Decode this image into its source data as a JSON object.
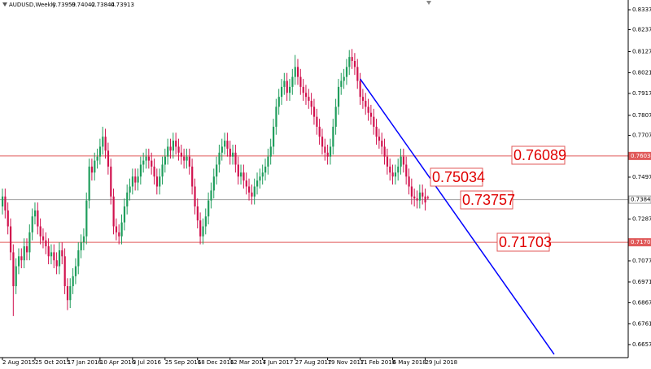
{
  "chart_data": {
    "type": "candlestick",
    "symbol": "AUDUSD,Weekly",
    "categories": [
      "2 Aug 2015",
      null,
      null,
      null,
      null,
      null,
      null,
      null,
      null,
      null,
      null,
      null,
      "25 Oct 2015",
      null,
      null,
      null,
      null,
      null,
      null,
      null,
      null,
      null,
      null,
      null,
      "17 Jan 2016",
      null,
      null,
      null,
      null,
      null,
      null,
      null,
      null,
      null,
      null,
      null,
      "10 Apr 2016",
      null,
      null,
      null,
      null,
      null,
      null,
      null,
      null,
      null,
      null,
      null,
      "3 Jul 2016",
      null,
      null,
      null,
      null,
      null,
      null,
      null,
      null,
      null,
      null,
      null,
      "25 Sep 2016",
      null,
      null,
      null,
      null,
      null,
      null,
      null,
      null,
      null,
      null,
      null,
      "18 Dec 2016",
      null,
      null,
      null,
      null,
      null,
      null,
      null,
      null,
      null,
      null,
      null,
      "12 Mar 2017",
      null,
      null,
      null,
      null,
      null,
      null,
      null,
      null,
      null,
      null,
      null,
      "4 Jun 2017",
      null,
      null,
      null,
      null,
      null,
      null,
      null,
      null,
      null,
      null,
      null,
      "27 Aug 2017",
      null,
      null,
      null,
      null,
      null,
      null,
      null,
      null,
      null,
      null,
      null,
      "19 Nov 2017",
      null,
      null,
      null,
      null,
      null,
      null,
      null,
      null,
      null,
      null,
      null,
      "11 Feb 2018",
      null,
      null,
      null,
      null,
      null,
      null,
      null,
      null,
      null,
      null,
      null,
      "6 May 2018",
      null,
      null,
      null,
      null,
      null,
      null,
      null,
      null,
      null,
      null,
      null,
      "29 Jul 2018",
      null
    ],
    "open": [
      0.735,
      0.74,
      0.733,
      0.725,
      0.712,
      0.695,
      0.705,
      0.71,
      0.708,
      0.715,
      0.712,
      0.722,
      0.73,
      0.733,
      0.725,
      0.72,
      0.718,
      0.715,
      0.71,
      0.712,
      0.708,
      0.705,
      0.713,
      0.71,
      0.695,
      0.688,
      0.695,
      0.7,
      0.705,
      0.713,
      0.717,
      0.72,
      0.738,
      0.755,
      0.752,
      0.758,
      0.76,
      0.765,
      0.77,
      0.763,
      0.755,
      0.74,
      0.725,
      0.722,
      0.72,
      0.727,
      0.735,
      0.742,
      0.745,
      0.75,
      0.747,
      0.75,
      0.756,
      0.758,
      0.76,
      0.758,
      0.755,
      0.75,
      0.745,
      0.75,
      0.756,
      0.76,
      0.765,
      0.763,
      0.768,
      0.765,
      0.762,
      0.76,
      0.758,
      0.76,
      0.755,
      0.745,
      0.735,
      0.728,
      0.72,
      0.725,
      0.73,
      0.738,
      0.743,
      0.75,
      0.756,
      0.762,
      0.765,
      0.768,
      0.764,
      0.76,
      0.762,
      0.756,
      0.75,
      0.752,
      0.748,
      0.745,
      0.742,
      0.74,
      0.745,
      0.748,
      0.75,
      0.752,
      0.755,
      0.76,
      0.765,
      0.775,
      0.785,
      0.79,
      0.795,
      0.798,
      0.792,
      0.795,
      0.8,
      0.805,
      0.8,
      0.795,
      0.792,
      0.79,
      0.788,
      0.785,
      0.78,
      0.775,
      0.77,
      0.765,
      0.762,
      0.76,
      0.765,
      0.775,
      0.785,
      0.795,
      0.798,
      0.8,
      0.805,
      0.81,
      0.808,
      0.805,
      0.798,
      0.79,
      0.788,
      0.785,
      0.782,
      0.78,
      0.775,
      0.77,
      0.768,
      0.765,
      0.76,
      0.755,
      0.752,
      0.75,
      0.752,
      0.755,
      0.76,
      0.756,
      0.75,
      0.745,
      0.74,
      0.739,
      0.738,
      0.742,
      0.74,
      0.73959
    ],
    "high": [
      0.744,
      0.744,
      0.737,
      0.729,
      0.716,
      0.709,
      0.714,
      0.714,
      0.719,
      0.719,
      0.726,
      0.734,
      0.737,
      0.737,
      0.729,
      0.724,
      0.722,
      0.719,
      0.716,
      0.716,
      0.712,
      0.717,
      0.717,
      0.714,
      0.699,
      0.699,
      0.704,
      0.709,
      0.717,
      0.721,
      0.724,
      0.742,
      0.759,
      0.759,
      0.762,
      0.764,
      0.769,
      0.775,
      0.774,
      0.767,
      0.759,
      0.744,
      0.729,
      0.726,
      0.731,
      0.739,
      0.746,
      0.749,
      0.754,
      0.754,
      0.754,
      0.76,
      0.762,
      0.764,
      0.764,
      0.762,
      0.759,
      0.754,
      0.754,
      0.76,
      0.764,
      0.769,
      0.769,
      0.772,
      0.772,
      0.769,
      0.766,
      0.764,
      0.764,
      0.764,
      0.759,
      0.749,
      0.739,
      0.732,
      0.729,
      0.734,
      0.742,
      0.747,
      0.754,
      0.76,
      0.766,
      0.769,
      0.772,
      0.772,
      0.768,
      0.766,
      0.766,
      0.76,
      0.756,
      0.756,
      0.752,
      0.749,
      0.746,
      0.749,
      0.752,
      0.754,
      0.756,
      0.759,
      0.764,
      0.769,
      0.779,
      0.789,
      0.794,
      0.799,
      0.802,
      0.802,
      0.799,
      0.804,
      0.811,
      0.809,
      0.804,
      0.799,
      0.796,
      0.794,
      0.792,
      0.789,
      0.784,
      0.779,
      0.774,
      0.769,
      0.766,
      0.769,
      0.779,
      0.789,
      0.799,
      0.802,
      0.804,
      0.809,
      0.8135,
      0.814,
      0.812,
      0.809,
      0.802,
      0.794,
      0.792,
      0.789,
      0.786,
      0.784,
      0.779,
      0.774,
      0.772,
      0.769,
      0.764,
      0.759,
      0.756,
      0.756,
      0.759,
      0.764,
      0.764,
      0.76,
      0.754,
      0.749,
      0.744,
      0.743,
      0.746,
      0.746,
      0.744,
      0.74042
    ],
    "low": [
      0.731,
      0.729,
      0.721,
      0.708,
      0.68,
      0.691,
      0.701,
      0.704,
      0.704,
      0.708,
      0.708,
      0.718,
      0.726,
      0.721,
      0.716,
      0.714,
      0.711,
      0.706,
      0.706,
      0.704,
      0.701,
      0.701,
      0.706,
      0.691,
      0.683,
      0.684,
      0.691,
      0.696,
      0.701,
      0.709,
      0.713,
      0.716,
      0.734,
      0.748,
      0.748,
      0.754,
      0.756,
      0.761,
      0.759,
      0.751,
      0.736,
      0.721,
      0.718,
      0.716,
      0.716,
      0.723,
      0.731,
      0.738,
      0.741,
      0.743,
      0.743,
      0.746,
      0.752,
      0.754,
      0.754,
      0.751,
      0.746,
      0.741,
      0.741,
      0.746,
      0.752,
      0.756,
      0.759,
      0.759,
      0.761,
      0.758,
      0.756,
      0.754,
      0.754,
      0.751,
      0.741,
      0.731,
      0.724,
      0.716,
      0.716,
      0.721,
      0.726,
      0.734,
      0.739,
      0.746,
      0.752,
      0.758,
      0.761,
      0.76,
      0.756,
      0.756,
      0.752,
      0.746,
      0.746,
      0.744,
      0.741,
      0.738,
      0.736,
      0.736,
      0.741,
      0.744,
      0.746,
      0.748,
      0.751,
      0.756,
      0.761,
      0.771,
      0.781,
      0.786,
      0.791,
      0.788,
      0.788,
      0.791,
      0.796,
      0.796,
      0.791,
      0.788,
      0.786,
      0.784,
      0.781,
      0.776,
      0.771,
      0.766,
      0.761,
      0.758,
      0.756,
      0.756,
      0.761,
      0.771,
      0.781,
      0.791,
      0.794,
      0.796,
      0.801,
      0.804,
      0.801,
      0.794,
      0.786,
      0.784,
      0.781,
      0.778,
      0.776,
      0.771,
      0.766,
      0.764,
      0.761,
      0.756,
      0.751,
      0.748,
      0.746,
      0.746,
      0.748,
      0.751,
      0.752,
      0.746,
      0.741,
      0.736,
      0.735,
      0.734,
      0.734,
      0.736,
      0.733,
      0.73844
    ],
    "close": [
      0.74,
      0.733,
      0.725,
      0.712,
      0.695,
      0.705,
      0.71,
      0.708,
      0.715,
      0.712,
      0.722,
      0.73,
      0.733,
      0.725,
      0.72,
      0.718,
      0.715,
      0.71,
      0.712,
      0.708,
      0.705,
      0.713,
      0.71,
      0.695,
      0.688,
      0.695,
      0.7,
      0.705,
      0.713,
      0.717,
      0.72,
      0.738,
      0.755,
      0.752,
      0.758,
      0.76,
      0.765,
      0.77,
      0.763,
      0.755,
      0.74,
      0.725,
      0.722,
      0.72,
      0.727,
      0.735,
      0.742,
      0.745,
      0.75,
      0.747,
      0.75,
      0.756,
      0.758,
      0.76,
      0.758,
      0.755,
      0.75,
      0.745,
      0.75,
      0.756,
      0.76,
      0.765,
      0.763,
      0.768,
      0.765,
      0.762,
      0.76,
      0.758,
      0.76,
      0.755,
      0.745,
      0.735,
      0.728,
      0.72,
      0.725,
      0.73,
      0.738,
      0.743,
      0.75,
      0.756,
      0.762,
      0.765,
      0.768,
      0.764,
      0.76,
      0.762,
      0.756,
      0.75,
      0.752,
      0.748,
      0.745,
      0.742,
      0.74,
      0.745,
      0.748,
      0.75,
      0.752,
      0.755,
      0.76,
      0.765,
      0.775,
      0.785,
      0.79,
      0.795,
      0.798,
      0.792,
      0.795,
      0.8,
      0.805,
      0.8,
      0.795,
      0.792,
      0.79,
      0.788,
      0.785,
      0.78,
      0.775,
      0.77,
      0.765,
      0.762,
      0.76,
      0.765,
      0.775,
      0.785,
      0.795,
      0.798,
      0.8,
      0.805,
      0.81,
      0.808,
      0.805,
      0.798,
      0.79,
      0.788,
      0.785,
      0.782,
      0.78,
      0.775,
      0.77,
      0.768,
      0.765,
      0.76,
      0.755,
      0.752,
      0.75,
      0.752,
      0.755,
      0.76,
      0.756,
      0.75,
      0.745,
      0.74,
      0.739,
      0.738,
      0.742,
      0.74,
      0.737,
      0.73913
    ],
    "up_color": "#1f9d5c",
    "down_color": "#d1124e",
    "ylim": [
      0.65915,
      0.83859
    ],
    "yticks": [
      {
        "value": 0.8337,
        "label": "0.83370"
      },
      {
        "value": 0.8237,
        "label": "0.82370"
      },
      {
        "value": 0.8127,
        "label": "0.81270"
      },
      {
        "value": 0.8021,
        "label": "0.80210"
      },
      {
        "value": 0.7917,
        "label": "0.79170"
      },
      {
        "value": 0.7807,
        "label": "0.78070"
      },
      {
        "value": 0.7707,
        "label": "0.77070"
      },
      {
        "value": 0.7497,
        "label": "0.74970"
      },
      {
        "value": 0.7287,
        "label": "0.72870"
      },
      {
        "value": 0.7077,
        "label": "0.70770"
      },
      {
        "value": 0.6971,
        "label": "0.69710"
      },
      {
        "value": 0.6867,
        "label": "0.68670"
      },
      {
        "value": 0.6761,
        "label": "0.67610"
      },
      {
        "value": 0.6657,
        "label": "0.66570"
      }
    ],
    "levels": [
      {
        "value": 0.76034,
        "color": "#e05a5a"
      },
      {
        "value": 0.73843,
        "color": "#a0a0a0"
      },
      {
        "value": 0.71703,
        "color": "#e05a5a"
      }
    ],
    "trendline": {
      "color": "#0000ff",
      "x": [
        132,
        203.6
      ],
      "y": [
        0.799,
        0.6608
      ]
    },
    "annotations": [
      "0.76089",
      "0.75034",
      "0.73757",
      "0.71703"
    ]
  }
}
